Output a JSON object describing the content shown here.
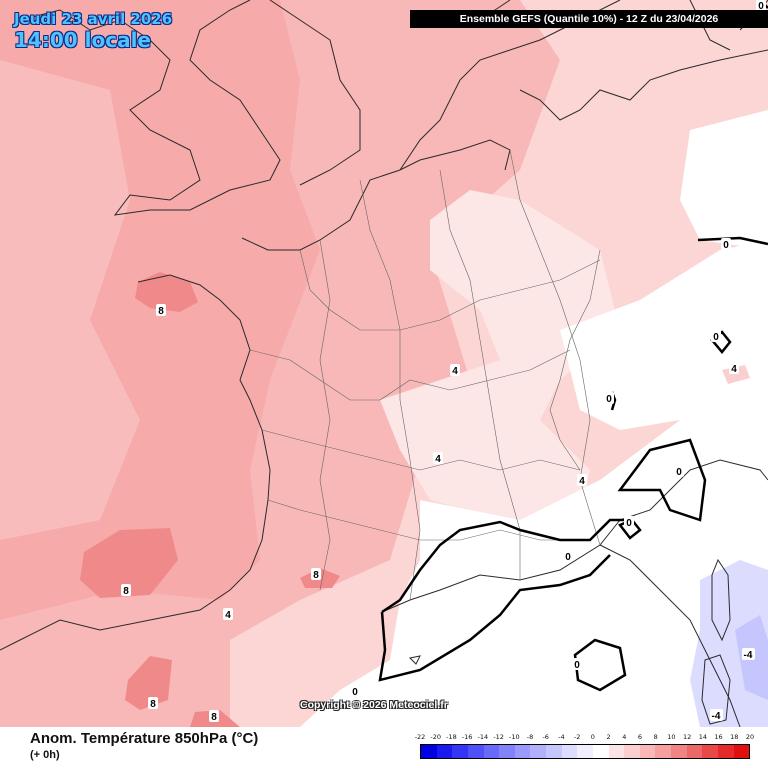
{
  "header": {
    "date_label": "Jeudi 23 avril 2026",
    "time_label": "14:00 locale",
    "run_info": "Ensemble GEFS  (Quantile 10%) - 12 Z du 23/04/2026"
  },
  "footer": {
    "variable_title": "Anom. Température 850hPa (°C)",
    "lead_time": "(+ 0h)",
    "copyright": "Copyright © 2026 Meteociel.fr"
  },
  "legend": {
    "ticks": [
      "-22",
      "-20",
      "-18",
      "-16",
      "-14",
      "-12",
      "-10",
      "-8",
      "-6",
      "-4",
      "-2",
      "0",
      "2",
      "4",
      "6",
      "8",
      "10",
      "12",
      "14",
      "16",
      "18",
      "20"
    ],
    "colors": [
      "#0000e0",
      "#1a1aee",
      "#3535f5",
      "#5050f8",
      "#6a6afa",
      "#8282fb",
      "#9a9afc",
      "#b0b0fd",
      "#c6c6fe",
      "#dcdcff",
      "#efeffe",
      "#ffffff",
      "#fde4e4",
      "#fbcfcf",
      "#f8b8b8",
      "#f4a0a0",
      "#f08484",
      "#ec6868",
      "#e84848",
      "#e42a2a",
      "#e01010"
    ]
  },
  "map_labels": [
    {
      "text": "8",
      "near": "Brittany"
    },
    {
      "text": "4",
      "near": "Champagne"
    },
    {
      "text": "4",
      "near": "Massif Central"
    },
    {
      "text": "4",
      "near": "Alps"
    },
    {
      "text": "8",
      "near": "Bay of Biscay"
    },
    {
      "text": "8",
      "near": "Pyrenees"
    },
    {
      "text": "4",
      "near": "Cantabria"
    },
    {
      "text": "8",
      "near": "Iberia"
    },
    {
      "text": "8",
      "near": "Iberia south"
    },
    {
      "text": "0",
      "near": "Provence"
    },
    {
      "text": "0",
      "near": "Mediterranean"
    },
    {
      "text": "0",
      "near": "Balearic"
    },
    {
      "text": "0",
      "near": "Italy"
    },
    {
      "text": "0",
      "near": "Germany"
    },
    {
      "text": "0",
      "near": "Austria"
    },
    {
      "text": "4",
      "near": "Austria"
    },
    {
      "text": "0",
      "near": "Northern Italy"
    },
    {
      "text": "0",
      "near": "Tuscany"
    },
    {
      "text": "-4",
      "near": "Tyrrhenian"
    },
    {
      "text": "-4",
      "near": "Sardinia"
    },
    {
      "text": "0",
      "near": "Corner NE"
    }
  ]
}
